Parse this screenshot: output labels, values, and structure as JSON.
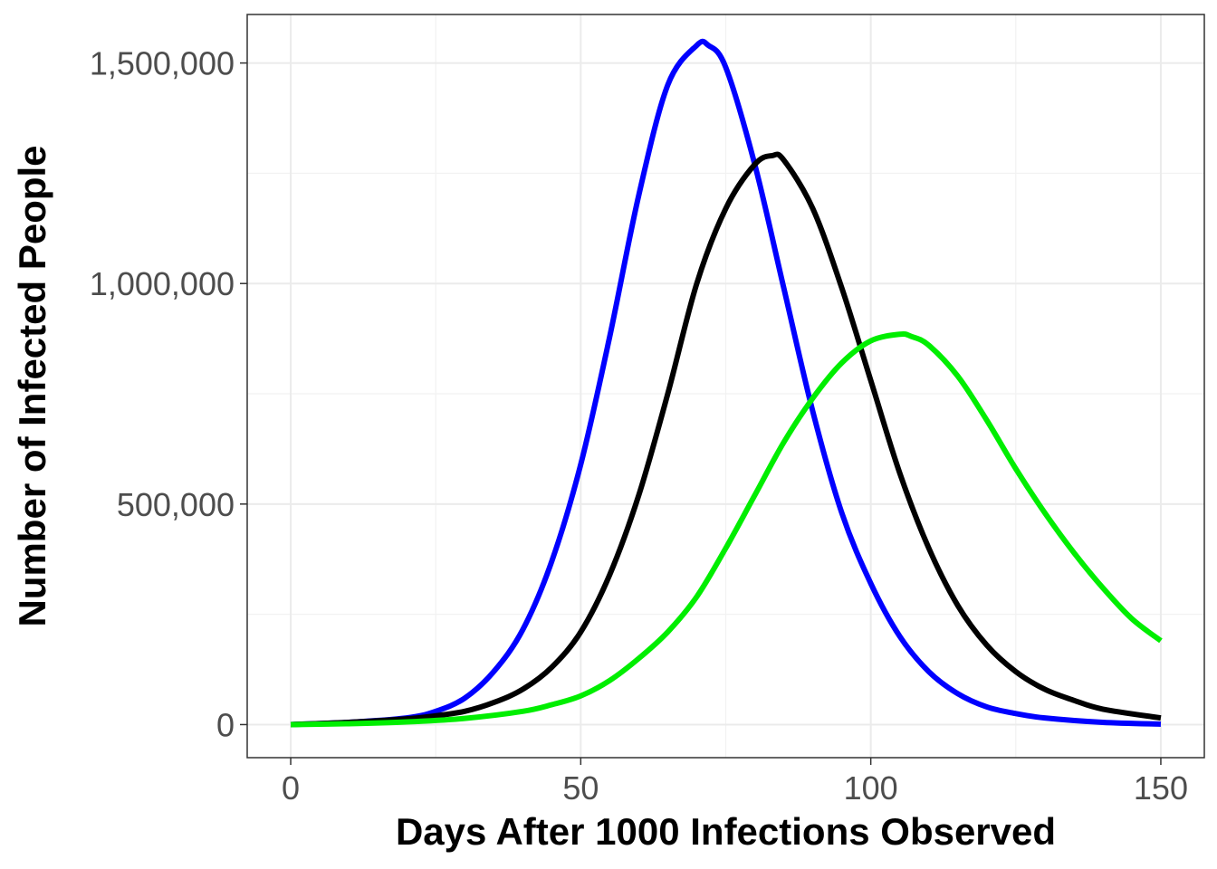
{
  "chart_data": {
    "type": "line",
    "title": "",
    "xlabel": "Days After 1000 Infections Observed",
    "ylabel": "Number of Infected People",
    "xlim": [
      -7.5,
      157.5
    ],
    "ylim": [
      -75000,
      1610000
    ],
    "x_ticks": [
      0,
      50,
      100,
      150
    ],
    "x_tick_labels": [
      "0",
      "50",
      "100",
      "150"
    ],
    "y_ticks": [
      0,
      500000,
      1000000,
      1500000
    ],
    "y_tick_labels": [
      "0",
      "500,000",
      "1,000,000",
      "1,500,000"
    ],
    "grid": true,
    "legend": "none",
    "series": [
      {
        "color": "#0000ff",
        "x": [
          0,
          10,
          20,
          25,
          30,
          35,
          40,
          45,
          50,
          55,
          60,
          65,
          70,
          72,
          75,
          80,
          85,
          90,
          95,
          100,
          105,
          110,
          115,
          120,
          125,
          130,
          140,
          150
        ],
        "y": [
          0,
          5000,
          15000,
          30000,
          60000,
          120000,
          215000,
          370000,
          590000,
          880000,
          1200000,
          1450000,
          1540000,
          1540000,
          1490000,
          1270000,
          990000,
          710000,
          480000,
          320000,
          200000,
          120000,
          70000,
          40000,
          25000,
          15000,
          5000,
          1000
        ]
      },
      {
        "color": "#000000",
        "x": [
          0,
          10,
          20,
          25,
          30,
          35,
          40,
          45,
          50,
          55,
          60,
          65,
          70,
          75,
          80,
          83,
          85,
          90,
          95,
          100,
          105,
          110,
          115,
          120,
          125,
          130,
          135,
          140,
          150
        ],
        "y": [
          0,
          5000,
          13000,
          20000,
          30000,
          50000,
          80000,
          130000,
          210000,
          340000,
          520000,
          750000,
          1000000,
          1170000,
          1270000,
          1290000,
          1280000,
          1170000,
          990000,
          780000,
          570000,
          400000,
          270000,
          180000,
          120000,
          80000,
          55000,
          35000,
          15000
        ]
      },
      {
        "color": "#00ee00",
        "x": [
          0,
          10,
          20,
          30,
          40,
          45,
          50,
          55,
          60,
          65,
          70,
          75,
          80,
          85,
          90,
          95,
          100,
          105,
          107,
          110,
          115,
          120,
          125,
          130,
          135,
          140,
          145,
          150
        ],
        "y": [
          0,
          2000,
          6000,
          14000,
          30000,
          45000,
          65000,
          100000,
          150000,
          210000,
          290000,
          400000,
          520000,
          640000,
          740000,
          820000,
          870000,
          885000,
          880000,
          860000,
          790000,
          690000,
          580000,
          480000,
          390000,
          310000,
          240000,
          190000
        ]
      }
    ]
  }
}
